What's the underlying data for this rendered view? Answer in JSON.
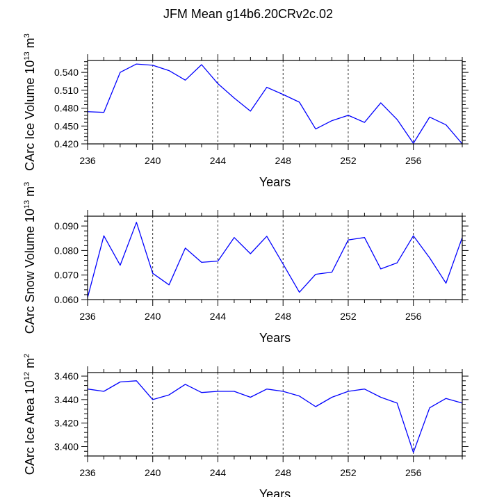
{
  "figure_title": "JFM Mean g14b6.20CRv2c.02",
  "chart_data": [
    {
      "type": "line",
      "title": "JFM Mean g14b6.20CRv2c.02",
      "xlabel": "Years",
      "ylabel_main": "CArc Ice Volume 10",
      "ylabel_exp": "13",
      "ylabel_unit": " m",
      "ylabel_unit_exp": "3",
      "xlim": [
        236,
        259
      ],
      "ylim": [
        0.42,
        0.56
      ],
      "xticks": [
        236,
        240,
        244,
        248,
        252,
        256
      ],
      "xtick_labels": [
        "236",
        "240",
        "244",
        "248",
        "252",
        "256"
      ],
      "yticks": [
        0.42,
        0.45,
        0.48,
        0.51,
        0.54
      ],
      "ytick_labels": [
        "0.420",
        "0.450",
        "0.480",
        "0.510",
        "0.540"
      ],
      "x": [
        236,
        237,
        238,
        239,
        240,
        241,
        242,
        243,
        244,
        245,
        246,
        247,
        248,
        249,
        250,
        251,
        252,
        253,
        254,
        255,
        256,
        257,
        258,
        259
      ],
      "series": [
        {
          "name": "CArc Ice Volume",
          "color": "#0000ff",
          "values": [
            0.474,
            0.473,
            0.54,
            0.554,
            0.552,
            0.543,
            0.527,
            0.553,
            0.521,
            0.497,
            0.475,
            0.515,
            0.503,
            0.49,
            0.445,
            0.459,
            0.468,
            0.456,
            0.489,
            0.461,
            0.421,
            0.465,
            0.452,
            0.42
          ]
        }
      ]
    },
    {
      "type": "line",
      "title": "",
      "xlabel": "Years",
      "ylabel_main": "CArc Snow Volume 10",
      "ylabel_exp": "13",
      "ylabel_unit": " m",
      "ylabel_unit_exp": "3",
      "xlim": [
        236,
        259
      ],
      "ylim": [
        0.06,
        0.094
      ],
      "xticks": [
        236,
        240,
        244,
        248,
        252,
        256
      ],
      "xtick_labels": [
        "236",
        "240",
        "244",
        "248",
        "252",
        "256"
      ],
      "yticks": [
        0.06,
        0.07,
        0.08,
        0.09
      ],
      "ytick_labels": [
        "0.060",
        "0.070",
        "0.080",
        "0.090"
      ],
      "x": [
        236,
        237,
        238,
        239,
        240,
        241,
        242,
        243,
        244,
        245,
        246,
        247,
        248,
        249,
        250,
        251,
        252,
        253,
        254,
        255,
        256,
        257,
        258,
        259
      ],
      "series": [
        {
          "name": "CArc Snow Volume",
          "color": "#0000ff",
          "values": [
            0.0608,
            0.086,
            0.074,
            0.0915,
            0.0707,
            0.066,
            0.081,
            0.0752,
            0.0757,
            0.0853,
            0.0787,
            0.0858,
            0.0745,
            0.063,
            0.0703,
            0.0712,
            0.0843,
            0.0853,
            0.0725,
            0.075,
            0.086,
            0.077,
            0.0667,
            0.0853
          ]
        }
      ]
    },
    {
      "type": "line",
      "title": "",
      "xlabel": "Years",
      "ylabel_main": "CArc Ice Area 10",
      "ylabel_exp": "12",
      "ylabel_unit": " m",
      "ylabel_unit_exp": "2",
      "xlim": [
        236,
        259
      ],
      "ylim": [
        3.392,
        3.463
      ],
      "xticks": [
        236,
        240,
        244,
        248,
        252,
        256
      ],
      "xtick_labels": [
        "236",
        "240",
        "244",
        "248",
        "252",
        "256"
      ],
      "yticks": [
        3.4,
        3.42,
        3.44,
        3.46
      ],
      "ytick_labels": [
        "3.400",
        "3.420",
        "3.440",
        "3.460"
      ],
      "x": [
        236,
        237,
        238,
        239,
        240,
        241,
        242,
        243,
        244,
        245,
        246,
        247,
        248,
        249,
        250,
        251,
        252,
        253,
        254,
        255,
        256,
        257,
        258,
        259
      ],
      "series": [
        {
          "name": "CArc Ice Area",
          "color": "#0000ff",
          "values": [
            3.449,
            3.447,
            3.455,
            3.456,
            3.44,
            3.444,
            3.453,
            3.446,
            3.447,
            3.447,
            3.442,
            3.449,
            3.447,
            3.443,
            3.434,
            3.442,
            3.447,
            3.449,
            3.442,
            3.437,
            3.395,
            3.433,
            3.441,
            3.437
          ]
        }
      ]
    }
  ]
}
